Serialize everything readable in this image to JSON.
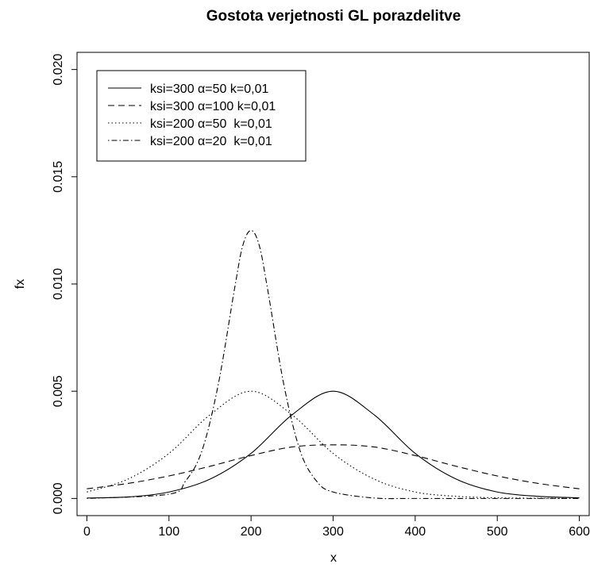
{
  "chart_data": {
    "type": "line",
    "title": "Gostota verjetnosti GL porazdelitve",
    "xlabel": "x",
    "ylabel": "fx",
    "xlim": [
      -12,
      612
    ],
    "ylim": [
      -0.0008,
      0.0208
    ],
    "xticks": [
      0,
      100,
      200,
      300,
      400,
      500,
      600
    ],
    "yticks": [
      0.0,
      0.005,
      0.01,
      0.015,
      0.02
    ],
    "ytick_labels": [
      "0.000",
      "0.005",
      "0.010",
      "0.015",
      "0.020"
    ],
    "grid": false,
    "legend_position": "top-left",
    "series": [
      {
        "name": "ksi=300 α=50 k=0,01",
        "dash": "solid",
        "x": [
          0,
          50,
          100,
          150,
          200,
          250,
          300,
          350,
          400,
          450,
          500,
          550,
          600
        ],
        "y": [
          2e-05,
          7e-05,
          0.0003,
          0.0009,
          0.0021,
          0.0039,
          0.005,
          0.0039,
          0.0021,
          0.0009,
          0.0003,
          0.0001,
          3e-05
        ]
      },
      {
        "name": "ksi=300 α=100 k=0,01",
        "dash": "dashed",
        "x": [
          0,
          50,
          100,
          150,
          200,
          250,
          300,
          350,
          400,
          450,
          500,
          550,
          600
        ],
        "y": [
          0.00045,
          0.0007,
          0.00105,
          0.0015,
          0.002,
          0.0024,
          0.0025,
          0.0024,
          0.002,
          0.0015,
          0.00105,
          0.0007,
          0.00045
        ]
      },
      {
        "name": "ksi=200 α=50  k=0,01",
        "dash": "dotted",
        "x": [
          0,
          50,
          100,
          150,
          200,
          250,
          300,
          350,
          400,
          450,
          500,
          550,
          600
        ],
        "y": [
          0.0003,
          0.0009,
          0.0021,
          0.0039,
          0.005,
          0.0039,
          0.0021,
          0.0009,
          0.0003,
          0.0001,
          3e-05,
          1e-05,
          0.0
        ]
      },
      {
        "name": "ksi=200 α=20  k=0,01",
        "dash": "dotdash",
        "x": [
          0,
          100,
          120,
          140,
          160,
          180,
          190,
          200,
          210,
          220,
          240,
          260,
          280,
          300,
          350,
          400,
          500,
          600
        ],
        "y": [
          0.0,
          0.0002,
          0.0008,
          0.0022,
          0.0053,
          0.0098,
          0.0118,
          0.0125,
          0.0118,
          0.0098,
          0.0053,
          0.0022,
          0.0008,
          0.0003,
          2e-05,
          0.0,
          0.0,
          0.0
        ]
      }
    ]
  }
}
